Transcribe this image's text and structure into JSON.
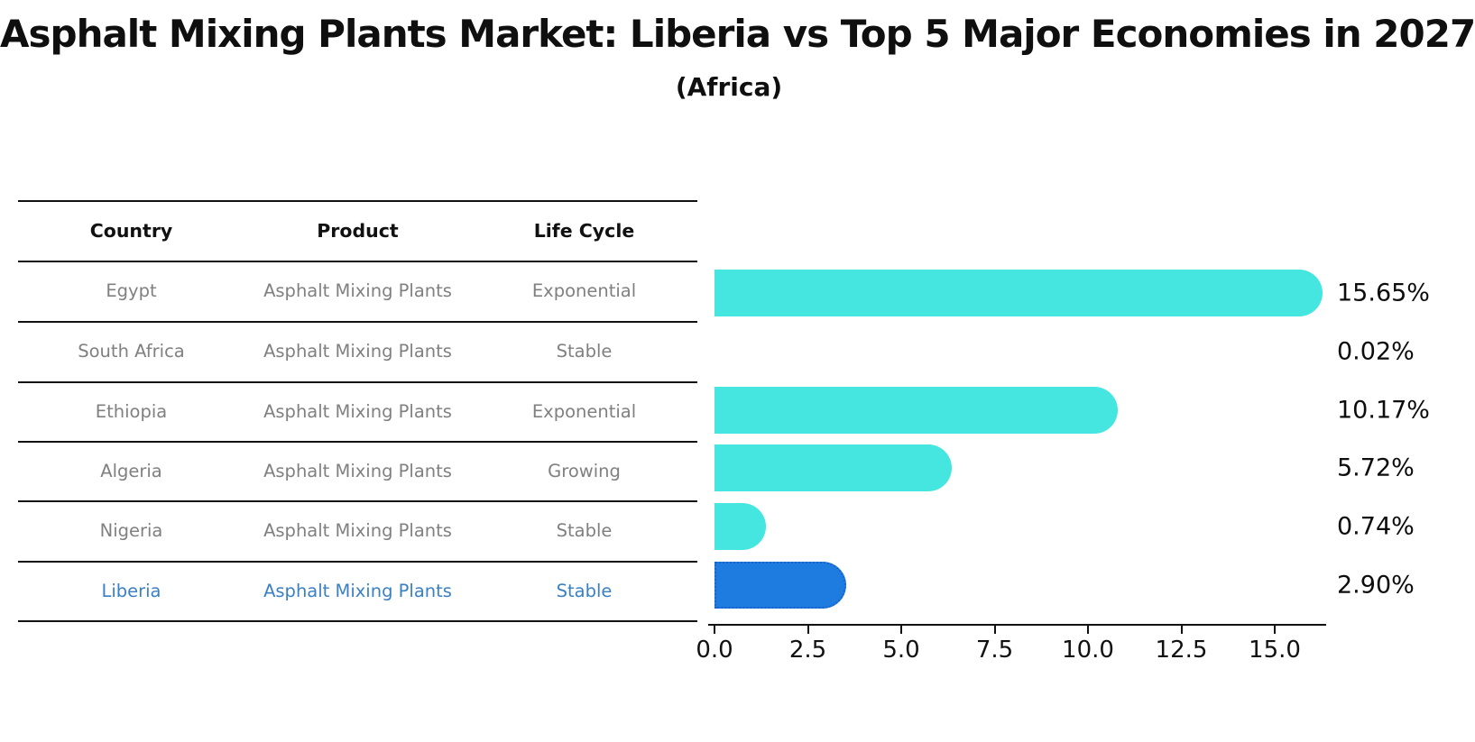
{
  "title": "Asphalt Mixing Plants Market: Liberia vs Top 5 Major Economies in 2027",
  "subtitle": "(Africa)",
  "table": {
    "headers": [
      "Country",
      "Product",
      "Life Cycle"
    ],
    "rows": [
      {
        "country": "Egypt",
        "product": "Asphalt Mixing Plants",
        "life_cycle": "Exponential",
        "highlighted": false
      },
      {
        "country": "South Africa",
        "product": "Asphalt Mixing Plants",
        "life_cycle": "Stable",
        "highlighted": false
      },
      {
        "country": "Ethiopia",
        "product": "Asphalt Mixing Plants",
        "life_cycle": "Exponential",
        "highlighted": false
      },
      {
        "country": "Algeria",
        "product": "Asphalt Mixing Plants",
        "life_cycle": "Growing",
        "highlighted": false
      },
      {
        "country": "Nigeria",
        "product": "Asphalt Mixing Plants",
        "life_cycle": "Stable",
        "highlighted": false
      },
      {
        "country": "Liberia",
        "product": "Asphalt Mixing Plants",
        "life_cycle": "Stable",
        "highlighted": true
      }
    ]
  },
  "chart_data": {
    "type": "bar",
    "orientation": "horizontal",
    "title": "Asphalt Mixing Plants Market: Liberia vs Top 5 Major Economies in 2027",
    "subtitle": "(Africa)",
    "categories": [
      "Egypt",
      "South Africa",
      "Ethiopia",
      "Algeria",
      "Nigeria",
      "Liberia"
    ],
    "values": [
      15.65,
      0.02,
      10.17,
      5.72,
      0.74,
      2.9
    ],
    "value_labels": [
      "15.65%",
      "0.02%",
      "10.17%",
      "5.72%",
      "0.74%",
      "2.90%"
    ],
    "xlabel": "",
    "ylabel": "",
    "xlim": [
      0,
      16.4
    ],
    "xticks": [
      0.0,
      2.5,
      5.0,
      7.5,
      10.0,
      12.5,
      15.0
    ],
    "xtick_labels": [
      "0.0",
      "2.5",
      "5.0",
      "7.5",
      "10.0",
      "12.5",
      "15.0"
    ],
    "grid": false,
    "legend": "none",
    "highlight_index": 5
  },
  "colors": {
    "bar": "#45e5e0",
    "highlight_bar": "#1e7be0",
    "highlight_border": "#1763c8",
    "highlight_text": "#3a80c4",
    "row_text": "#808080",
    "header_text": "#111111",
    "axis": "#111111"
  }
}
